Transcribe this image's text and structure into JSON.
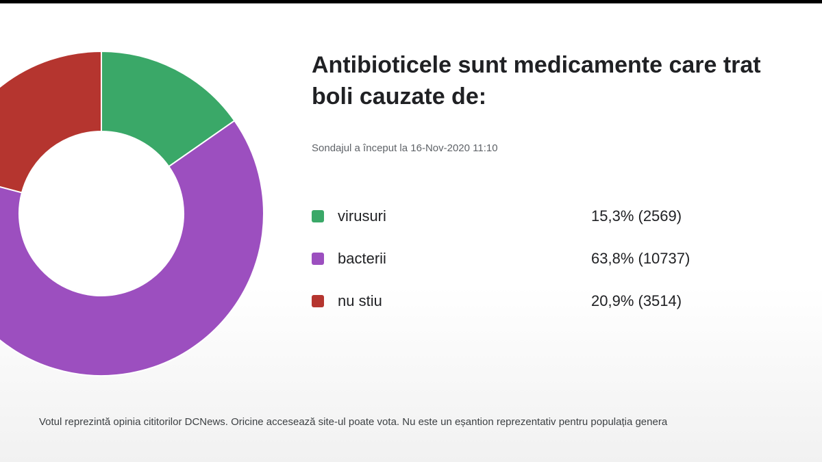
{
  "chart_data": {
    "type": "pie",
    "variant": "donut",
    "title": "Antibioticele sunt medicamente care trat boli cauzate de:",
    "title_lines": [
      "Antibioticele sunt medicamente care trat",
      "boli cauzate de:"
    ],
    "subtitle": "Sondajul a început la 16-Nov-2020 11:10",
    "legend_position": "right",
    "slices": [
      {
        "label": "virusuri",
        "percent": 15.3,
        "votes": 2569,
        "display": "15,3% (2569)",
        "color": "#3aa868"
      },
      {
        "label": "bacterii",
        "percent": 63.8,
        "votes": 10737,
        "display": "63,8% (10737)",
        "color": "#9c4fbf"
      },
      {
        "label": "nu stiu",
        "percent": 20.9,
        "votes": 3514,
        "display": "20,9% (3514)",
        "color": "#b5352f"
      }
    ],
    "footnote": "Votul reprezintă opinia cititorilor DCNews. Oricine accesează site-ul poate vota. Nu este un eșantion reprezentativ pentru populația genera"
  }
}
